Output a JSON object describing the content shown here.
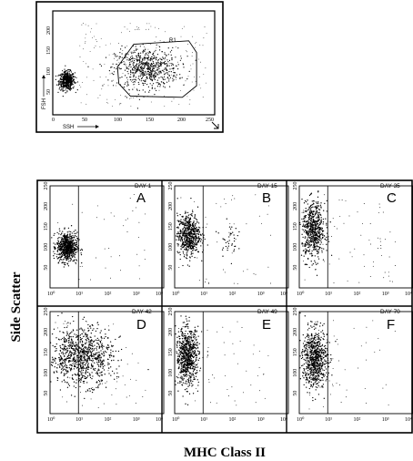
{
  "figure": {
    "y_axis_label": "Side Scatter",
    "x_axis_label": "MHC Class II"
  },
  "chart_data": [
    {
      "id": "gate",
      "type": "scatter",
      "xlabel": "SSH",
      "ylabel": "FSH",
      "xlim": [
        0,
        250
      ],
      "ylim": [
        0,
        250
      ],
      "x_ticks": [
        "0",
        "50",
        "100",
        "150",
        "200",
        "250"
      ],
      "y_ticks": [
        "0",
        "50",
        "100",
        "150",
        "200",
        "250"
      ],
      "gate_label": "R1",
      "gate_polygon": [
        [
          100,
          115
        ],
        [
          125,
          170
        ],
        [
          210,
          178
        ],
        [
          222,
          150
        ],
        [
          222,
          70
        ],
        [
          200,
          42
        ],
        [
          120,
          45
        ],
        [
          102,
          75
        ]
      ],
      "clusters": [
        {
          "cx": 22,
          "cy": 82,
          "sx": 6,
          "sy": 11,
          "n": 520
        },
        {
          "cx": 145,
          "cy": 112,
          "sx": 24,
          "sy": 24,
          "n": 650
        }
      ],
      "scatter_dots": 200
    },
    {
      "id": "A",
      "type": "scatter",
      "letter": "A",
      "day": "DAY 1",
      "x_ticks": [
        "10⁰",
        "10¹",
        "10²",
        "10³",
        "10⁴"
      ],
      "y_ticks": [
        "0",
        "50",
        "100",
        "150",
        "200",
        "250"
      ],
      "xlim": [
        0,
        4
      ],
      "ylim": [
        0,
        250
      ],
      "gate_x": 1.0,
      "clusters": [
        {
          "cx": 0.6,
          "cy": 100,
          "sx": 0.18,
          "sy": 18,
          "n": 650
        }
      ],
      "scatter_dots": 40
    },
    {
      "id": "B",
      "type": "scatter",
      "letter": "B",
      "day": "DAY 15",
      "x_ticks": [
        "10⁰",
        "10¹",
        "10²",
        "10³",
        "10⁴"
      ],
      "y_ticks": [
        "0",
        "50",
        "100",
        "150",
        "200",
        "250"
      ],
      "xlim": [
        0,
        4
      ],
      "ylim": [
        0,
        250
      ],
      "gate_x": 1.0,
      "clusters": [
        {
          "cx": 0.5,
          "cy": 130,
          "sx": 0.2,
          "sy": 25,
          "n": 600
        },
        {
          "cx": 1.9,
          "cy": 120,
          "sx": 0.15,
          "sy": 20,
          "n": 40
        }
      ],
      "scatter_dots": 50
    },
    {
      "id": "C",
      "type": "scatter",
      "letter": "C",
      "day": "DAY 35",
      "x_ticks": [
        "10⁰",
        "10¹",
        "10²",
        "10³",
        "10⁴"
      ],
      "y_ticks": [
        "0",
        "50",
        "100",
        "150",
        "200",
        "250"
      ],
      "xlim": [
        0,
        4
      ],
      "ylim": [
        0,
        250
      ],
      "gate_x": 1.0,
      "clusters": [
        {
          "cx": 0.5,
          "cy": 140,
          "sx": 0.2,
          "sy": 35,
          "n": 620
        }
      ],
      "scatter_dots": 70
    },
    {
      "id": "D",
      "type": "scatter",
      "letter": "D",
      "day": "DAY 42",
      "x_ticks": [
        "10⁰",
        "10¹",
        "10²",
        "10³",
        "10⁴"
      ],
      "y_ticks": [
        "0",
        "50",
        "100",
        "150",
        "200",
        "250"
      ],
      "xlim": [
        0,
        4
      ],
      "ylim": [
        0,
        250
      ],
      "gate_x": 1.0,
      "clusters": [
        {
          "cx": 1.1,
          "cy": 140,
          "sx": 0.55,
          "sy": 35,
          "n": 900
        }
      ],
      "scatter_dots": 60
    },
    {
      "id": "E",
      "type": "scatter",
      "letter": "E",
      "day": "DAY 49",
      "x_ticks": [
        "10⁰",
        "10¹",
        "10²",
        "10³",
        "10⁴"
      ],
      "y_ticks": [
        "0",
        "50",
        "100",
        "150",
        "200",
        "250"
      ],
      "xlim": [
        0,
        4
      ],
      "ylim": [
        0,
        250
      ],
      "gate_x": 1.0,
      "clusters": [
        {
          "cx": 0.45,
          "cy": 140,
          "sx": 0.2,
          "sy": 35,
          "n": 750
        }
      ],
      "scatter_dots": 50
    },
    {
      "id": "F",
      "type": "scatter",
      "letter": "F",
      "day": "DAY 70",
      "x_ticks": [
        "10⁰",
        "10¹",
        "10²",
        "10³",
        "10⁴"
      ],
      "y_ticks": [
        "0",
        "50",
        "100",
        "150",
        "200",
        "250"
      ],
      "xlim": [
        0,
        4
      ],
      "ylim": [
        0,
        250
      ],
      "gate_x": 1.0,
      "clusters": [
        {
          "cx": 0.55,
          "cy": 135,
          "sx": 0.22,
          "sy": 35,
          "n": 750
        }
      ],
      "scatter_dots": 45
    }
  ]
}
